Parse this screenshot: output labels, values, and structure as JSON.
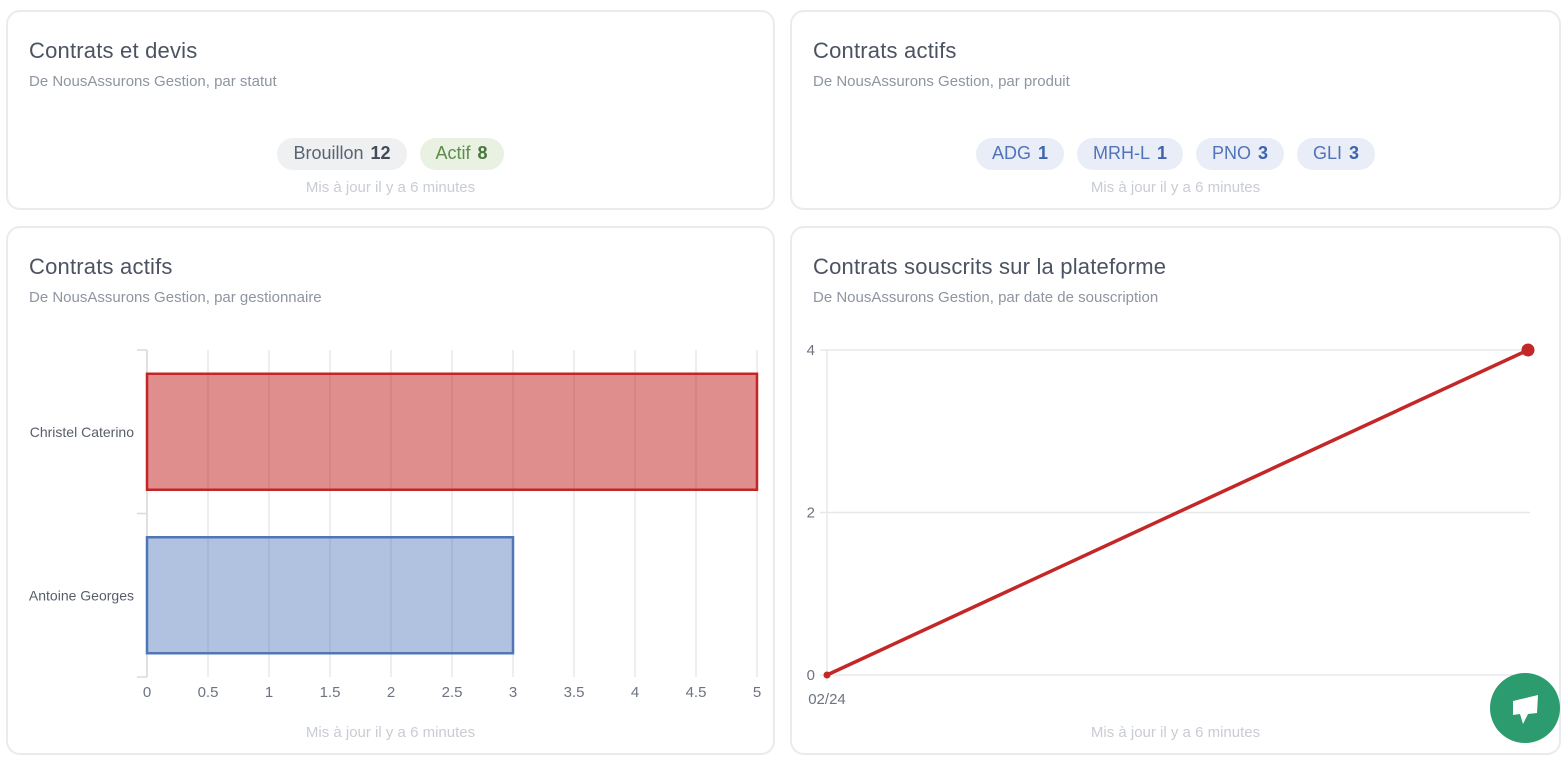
{
  "badge_styles": {
    "gray": {
      "bg": "#eef0f2",
      "label": "#5a6372",
      "num": "#434b59"
    },
    "green": {
      "bg": "#e9f1e3",
      "label": "#5d8b49",
      "num": "#47763a"
    },
    "blue": {
      "bg": "#e9edf8",
      "label": "#5173ba",
      "num": "#3f63ae"
    }
  },
  "cards": [
    {
      "title": "Contrats et devis",
      "subtitle": "De NousAssurons Gestion, par statut",
      "updated": "Mis à jour il y a 6 minutes",
      "badges": [
        {
          "label": "Brouillon",
          "value": "12",
          "variant": "gray"
        },
        {
          "label": "Actif",
          "value": "8",
          "variant": "green"
        }
      ]
    },
    {
      "title": "Contrats actifs",
      "subtitle": "De NousAssurons Gestion, par produit",
      "updated": "Mis à jour il y a 6 minutes",
      "badges": [
        {
          "label": "ADG",
          "value": "1",
          "variant": "blue"
        },
        {
          "label": "MRH-L",
          "value": "1",
          "variant": "blue"
        },
        {
          "label": "PNO",
          "value": "3",
          "variant": "blue"
        },
        {
          "label": "GLI",
          "value": "3",
          "variant": "blue"
        }
      ]
    },
    {
      "title": "Contrats actifs",
      "subtitle": "De NousAssurons Gestion, par gestionnaire",
      "updated": "Mis à jour il y a 6 minutes"
    },
    {
      "title": "Contrats souscrits sur la plateforme",
      "subtitle": "De NousAssurons Gestion, par date de souscription",
      "updated": "Mis à jour il y a 6 minutes"
    }
  ],
  "chart_data": [
    {
      "type": "bar",
      "orientation": "horizontal",
      "title": "Contrats actifs",
      "subtitle": "De NousAssurons Gestion, par gestionnaire",
      "categories": [
        "Christel Caterino",
        "Antoine Georges"
      ],
      "values": [
        5,
        3
      ],
      "series_styles": [
        {
          "stroke": "#c42525",
          "fill": "rgba(196,37,37,0.52)"
        },
        {
          "stroke": "#4f77b8",
          "fill": "rgba(79,119,184,0.45)"
        }
      ],
      "xlim": [
        0,
        5
      ],
      "xticks": [
        0,
        0.5,
        1,
        1.5,
        2,
        2.5,
        3,
        3.5,
        4,
        4.5,
        5
      ],
      "xtick_labels": [
        "0",
        "0.5",
        "1",
        "1.5",
        "2",
        "2.5",
        "3",
        "3.5",
        "4",
        "4.5",
        "5"
      ],
      "grid": true,
      "legend": false
    },
    {
      "type": "line",
      "title": "Contrats souscrits sur la plateforme",
      "subtitle": "De NousAssurons Gestion, par date de souscription",
      "points": [
        {
          "x": 0,
          "y": 0,
          "label": "02/24"
        },
        {
          "x": 1,
          "y": 4,
          "label": ""
        }
      ],
      "color": "#c42727",
      "ylim": [
        0,
        4
      ],
      "yticks": [
        0,
        2,
        4
      ],
      "grid": true,
      "legend": false
    }
  ],
  "chat_widget": {
    "icon": "chat-bubble-icon",
    "color": "#2c9b6e"
  }
}
